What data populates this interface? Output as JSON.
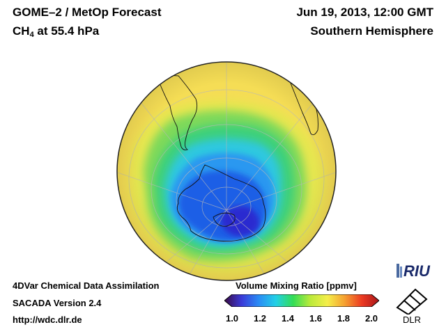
{
  "header": {
    "title": "GOME–2 / MetOp Forecast",
    "species_main": "CH",
    "species_sub": "4",
    "species_rest": " at 55.4 hPa",
    "date": "Jun 19, 2013, 12:00 GMT",
    "hemisphere": "Southern Hemisphere"
  },
  "footer": {
    "line1": "4DVar Chemical Data Assimilation",
    "line2": "SACADA Version 2.4",
    "line3": "http://wdc.dlr.de"
  },
  "colorbar": {
    "title": "Volume Mixing Ratio [ppmv]",
    "ticks": [
      "1.0",
      "1.2",
      "1.4",
      "1.6",
      "1.8",
      "2.0"
    ],
    "min": 1.0,
    "max": 2.0,
    "colors": [
      "#3a0a45",
      "#3a3ad8",
      "#2a8cf5",
      "#22d0e6",
      "#33dd55",
      "#bbea3a",
      "#f5ee4a",
      "#f5a030",
      "#ec3a22",
      "#a8161a"
    ]
  },
  "logos": {
    "riu": "RIU",
    "dlr": "DLR"
  }
}
